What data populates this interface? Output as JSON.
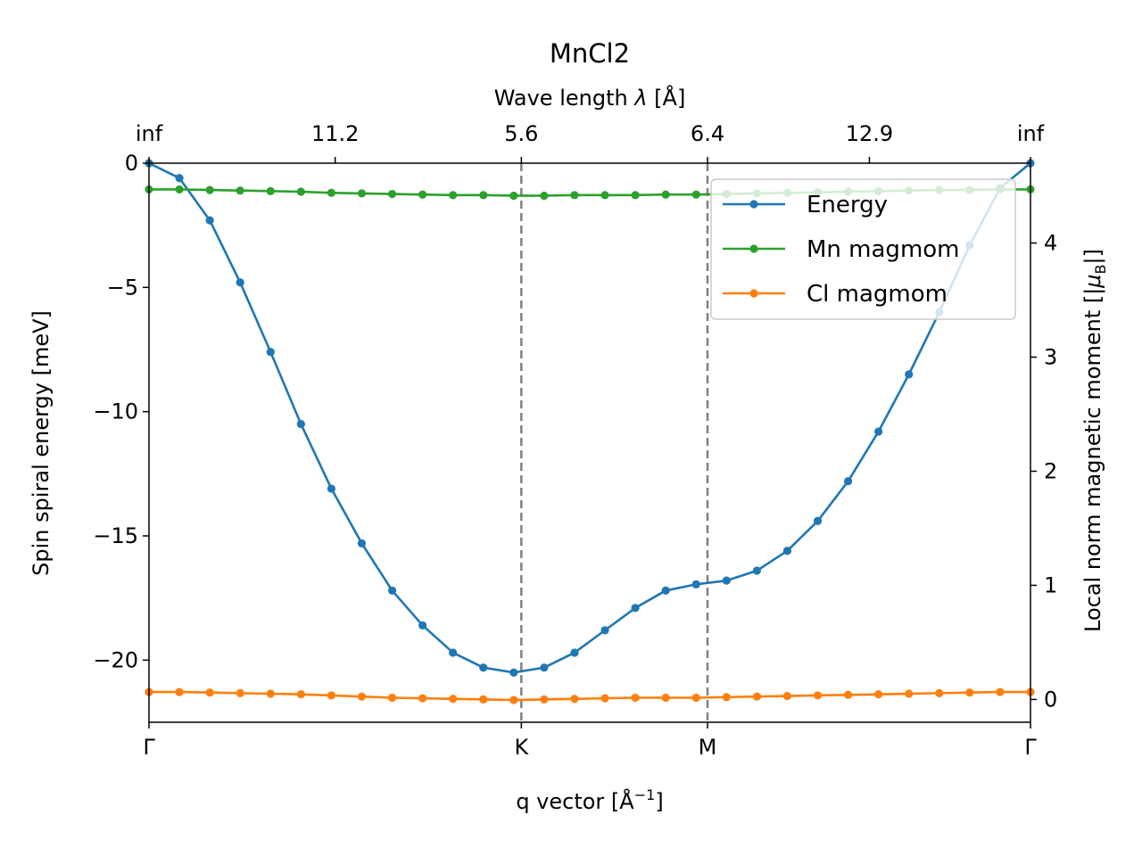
{
  "chart_data": {
    "type": "line",
    "title": "MnCl2",
    "xlabel": "q vector [Å",
    "xlabel_sup": "−1",
    "xlabel_end": "]",
    "top_xlabel": "Wave length ",
    "top_xlabel_symbol": "λ",
    "top_xlabel_end": " [Å]",
    "ylabel_left": "Spin spiral energy [meV]",
    "ylabel_right": "Local norm magnetic moment [|",
    "ylabel_right_symbol": "μ",
    "ylabel_right_sub": "B",
    "ylabel_right_end": "|]",
    "x": [
      0,
      1,
      2,
      3,
      4,
      5,
      6,
      7,
      8,
      9,
      10,
      11,
      12,
      13,
      14,
      15,
      16,
      17,
      18,
      19,
      20,
      21,
      22,
      23,
      24,
      25,
      26,
      27,
      28,
      29
    ],
    "xlim": [
      0,
      29
    ],
    "ylim_left": [
      -22.5,
      0
    ],
    "ylim_right": [
      -0.2,
      4.7
    ],
    "left_yticks": [
      {
        "value": 0,
        "label": "0"
      },
      {
        "value": -5,
        "label": "−5"
      },
      {
        "value": -10,
        "label": "−10"
      },
      {
        "value": -15,
        "label": "−15"
      },
      {
        "value": -20,
        "label": "−20"
      }
    ],
    "right_yticks": [
      {
        "value": 0,
        "label": "0"
      },
      {
        "value": 1,
        "label": "1"
      },
      {
        "value": 2,
        "label": "2"
      },
      {
        "value": 3,
        "label": "3"
      },
      {
        "value": 4,
        "label": "4"
      }
    ],
    "bottom_xticks": [
      {
        "x": 0,
        "label": "Γ"
      },
      {
        "x": 12.25,
        "label": "K"
      },
      {
        "x": 18.375,
        "label": "M"
      },
      {
        "x": 29,
        "label": "Γ"
      }
    ],
    "top_xticks": [
      {
        "x": 0,
        "label": "inf"
      },
      {
        "x": 6.125,
        "label": "11.2"
      },
      {
        "x": 12.25,
        "label": "5.6"
      },
      {
        "x": 18.375,
        "label": "6.4"
      },
      {
        "x": 23.7,
        "label": "12.9"
      },
      {
        "x": 29,
        "label": "inf"
      }
    ],
    "vlines": [
      12.25,
      18.375
    ],
    "series": [
      {
        "name": "Energy",
        "axis": "left",
        "color": "#1f77b4",
        "values": [
          0,
          -0.6,
          -2.3,
          -4.8,
          -7.6,
          -10.5,
          -13.1,
          -15.3,
          -17.2,
          -18.6,
          -19.7,
          -20.3,
          -20.5,
          -20.3,
          -19.7,
          -18.8,
          -17.9,
          -17.2,
          -16.95,
          -16.8,
          -16.4,
          -15.6,
          -14.4,
          -12.8,
          -10.8,
          -8.5,
          -6.0,
          -3.3,
          -1.0,
          0
        ]
      },
      {
        "name": "Mn magmom",
        "axis": "right",
        "color": "#2ca02c",
        "values": [
          4.47,
          4.47,
          4.465,
          4.46,
          4.455,
          4.45,
          4.44,
          4.435,
          4.43,
          4.425,
          4.42,
          4.42,
          4.415,
          4.415,
          4.42,
          4.42,
          4.42,
          4.425,
          4.425,
          4.43,
          4.435,
          4.44,
          4.445,
          4.45,
          4.455,
          4.46,
          4.465,
          4.465,
          4.47,
          4.47
        ]
      },
      {
        "name": "Cl magmom",
        "axis": "right",
        "color": "#ff7f0e",
        "values": [
          0.065,
          0.065,
          0.06,
          0.055,
          0.05,
          0.045,
          0.035,
          0.025,
          0.015,
          0.01,
          0.005,
          0.0,
          -0.005,
          0.0,
          0.005,
          0.01,
          0.015,
          0.015,
          0.015,
          0.02,
          0.025,
          0.03,
          0.035,
          0.04,
          0.045,
          0.05,
          0.055,
          0.06,
          0.065,
          0.065
        ]
      }
    ],
    "legend_position": "top-right",
    "vline_color": "#808080",
    "legend_frame_color": "#cccccc"
  }
}
